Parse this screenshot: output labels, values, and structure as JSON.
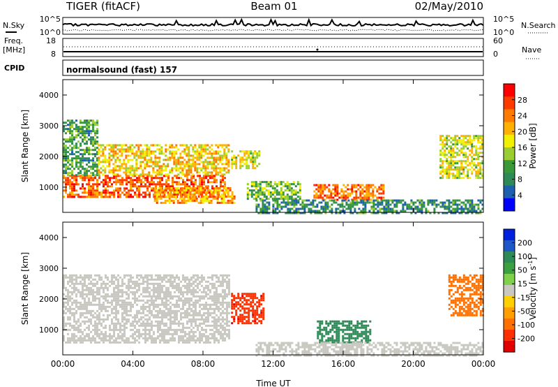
{
  "header": {
    "radar": "TIGER (fitACF)",
    "beam": "Beam 01",
    "date": "02/May/2010"
  },
  "sky_panel": {
    "left_label": "N.Sky",
    "right_label": "N.Search",
    "left_ticks": [
      "10^5",
      "10^0"
    ],
    "right_ticks": [
      "10^5",
      "10^0"
    ]
  },
  "freq_panel": {
    "left_label_1": "Freq.",
    "left_label_2": "[MHz]",
    "left_ticks": [
      "18",
      "8"
    ],
    "right_label": "Nave",
    "right_ticks": [
      "60",
      "0"
    ]
  },
  "cpid_panel": {
    "label": "CPID",
    "value": "normalsound (fast) 157"
  },
  "power_colorbar": {
    "label": "Power [dB]",
    "ticks": [
      "28",
      "24",
      "20",
      "16",
      "12",
      "8",
      "4"
    ],
    "colors": [
      "#ff0000",
      "#ff3a00",
      "#ff7a00",
      "#ffb000",
      "#f0f000",
      "#9acd32",
      "#3a9a3a",
      "#2e8b57",
      "#1e60b0",
      "#0000ff"
    ]
  },
  "velocity_colorbar": {
    "label_main": "Velocity [m s",
    "label_sup": "-1",
    "label_end": "]",
    "ticks": [
      "200",
      "100",
      "50",
      "15",
      "-15",
      "-50",
      "-100",
      "-200"
    ],
    "colors": [
      "#0020e0",
      "#1e58c8",
      "#2e8b57",
      "#3aa040",
      "#7fd04a",
      "#c8c8c0",
      "#ffd000",
      "#ffa000",
      "#ff7000",
      "#ff3000",
      "#e00000"
    ]
  },
  "chart_data": [
    {
      "type": "heatmap",
      "title": "",
      "ylabel": "Slant Range [km]",
      "xlabel": "",
      "x_range": [
        "00:00",
        "24:00"
      ],
      "ylim": [
        180,
        4500
      ],
      "yticks": [
        "4000",
        "3000",
        "2000",
        "1000"
      ],
      "xticks": [
        "00:00",
        "04:00",
        "08:00",
        "12:00",
        "16:00",
        "20:00",
        "00:00"
      ],
      "quantity": "Power [dB]",
      "regions": [
        {
          "t0": 0.0,
          "t1": 9.3,
          "r0": 700,
          "r1": 1400,
          "value": 26
        },
        {
          "t0": 0.0,
          "t1": 2.0,
          "r0": 1400,
          "r1": 3200,
          "value": 12
        },
        {
          "t0": 2.0,
          "t1": 9.5,
          "r0": 1400,
          "r1": 2400,
          "value": 20
        },
        {
          "t0": 5.2,
          "t1": 9.8,
          "r0": 500,
          "r1": 1000,
          "value": 22
        },
        {
          "t0": 9.6,
          "t1": 11.2,
          "r0": 1600,
          "r1": 2200,
          "value": 18
        },
        {
          "t0": 10.5,
          "t1": 13.5,
          "r0": 600,
          "r1": 1200,
          "value": 14
        },
        {
          "t0": 14.3,
          "t1": 18.3,
          "r0": 600,
          "r1": 1100,
          "value": 25
        },
        {
          "t0": 11.0,
          "t1": 24.0,
          "r0": 180,
          "r1": 600,
          "value": 10
        },
        {
          "t0": 21.5,
          "t1": 24.0,
          "r0": 1300,
          "r1": 2700,
          "value": 18
        }
      ]
    },
    {
      "type": "heatmap",
      "title": "",
      "ylabel": "Slant Range [km]",
      "xlabel": "Time UT",
      "x_range": [
        "00:00",
        "24:00"
      ],
      "ylim": [
        180,
        4500
      ],
      "yticks": [
        "4000",
        "3000",
        "2000",
        "1000"
      ],
      "xticks": [
        "00:00",
        "04:00",
        "08:00",
        "12:00",
        "16:00",
        "20:00",
        "00:00"
      ],
      "quantity": "Velocity [m s-1]",
      "regions": [
        {
          "t0": 0.0,
          "t1": 9.5,
          "r0": 600,
          "r1": 2800,
          "value": 0
        },
        {
          "t0": 9.6,
          "t1": 11.5,
          "r0": 1200,
          "r1": 2200,
          "value": -200
        },
        {
          "t0": 14.5,
          "t1": 17.5,
          "r0": 600,
          "r1": 1300,
          "value": 150
        },
        {
          "t0": 11.0,
          "t1": 24.0,
          "r0": 180,
          "r1": 600,
          "value": 15
        },
        {
          "t0": 22.0,
          "t1": 24.0,
          "r0": 1500,
          "r1": 2800,
          "value": -120
        }
      ]
    }
  ]
}
